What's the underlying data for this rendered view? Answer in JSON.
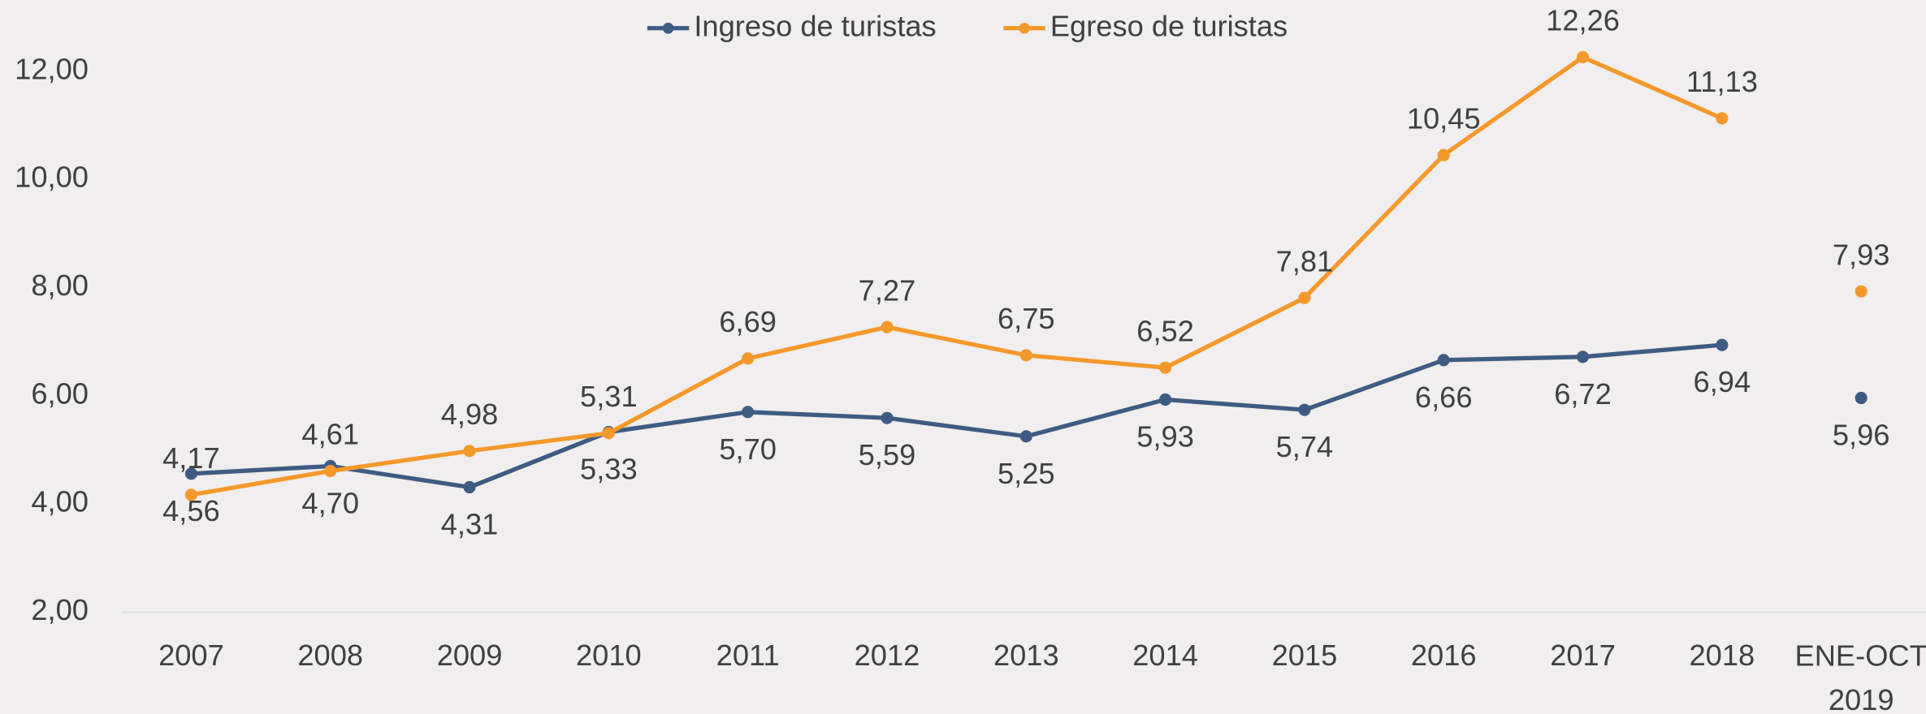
{
  "chart_data": {
    "type": "line",
    "categories": [
      "2007",
      "2008",
      "2009",
      "2010",
      "2011",
      "2012",
      "2013",
      "2014",
      "2015",
      "2016",
      "2017",
      "2018",
      "ENE-OCT 2019"
    ],
    "series": [
      {
        "name": "Ingreso de turistas",
        "color": "#3e5b83",
        "values": [
          4.56,
          4.7,
          4.31,
          5.33,
          5.7,
          5.59,
          5.25,
          5.93,
          5.74,
          6.66,
          6.72,
          6.94,
          5.96
        ],
        "value_labels": [
          "4,56",
          "4,70",
          "4,31",
          "5,33",
          "5,70",
          "5,59",
          "5,25",
          "5,93",
          "5,74",
          "6,66",
          "6,72",
          "6,94",
          "5,96"
        ]
      },
      {
        "name": "Egreso de turistas",
        "color": "#f3992c",
        "values": [
          4.17,
          4.61,
          4.98,
          5.31,
          6.69,
          7.27,
          6.75,
          6.52,
          7.81,
          10.45,
          12.26,
          11.13,
          7.93
        ],
        "value_labels": [
          "4,17",
          "4,61",
          "4,98",
          "5,31",
          "6,69",
          "7,27",
          "6,75",
          "6,52",
          "7,81",
          "10,45",
          "12,26",
          "11,13",
          "7,93"
        ]
      }
    ],
    "ylim": [
      2,
      12.5
    ],
    "yticks": [
      {
        "value": 2,
        "label": "2,00"
      },
      {
        "value": 4,
        "label": "4,00"
      },
      {
        "value": 6,
        "label": "6,00"
      },
      {
        "value": 8,
        "label": "8,00"
      },
      {
        "value": 10,
        "label": "10,00"
      },
      {
        "value": 12,
        "label": "12,00"
      }
    ],
    "legend": "top"
  }
}
